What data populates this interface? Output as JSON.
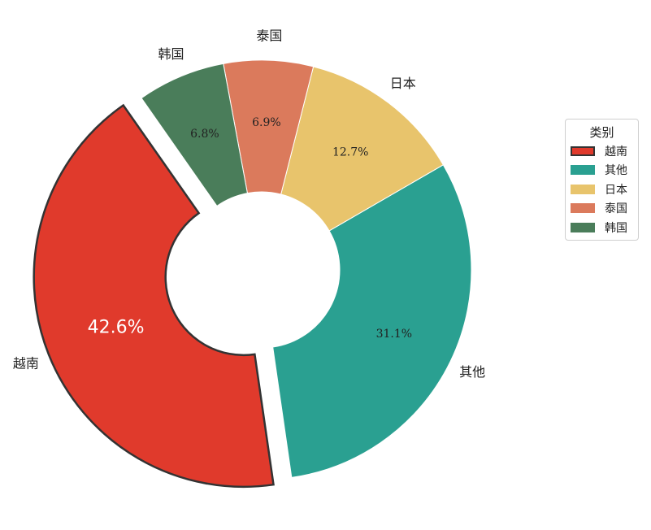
{
  "chart_data": {
    "type": "pie",
    "donut": true,
    "categories": [
      "越南",
      "其他",
      "日本",
      "泰国",
      "韩国"
    ],
    "values": [
      42.6,
      31.1,
      12.7,
      6.9,
      6.8
    ],
    "value_labels": [
      "42.6%",
      "31.1%",
      "12.7%",
      "6.9%",
      "6.8%"
    ],
    "colors": [
      "#e03a2c",
      "#2aa091",
      "#e8c46c",
      "#db7a5c",
      "#4a7d5a"
    ],
    "exploded": [
      "越南"
    ],
    "legend": {
      "title": "类别",
      "placement": "right"
    }
  }
}
